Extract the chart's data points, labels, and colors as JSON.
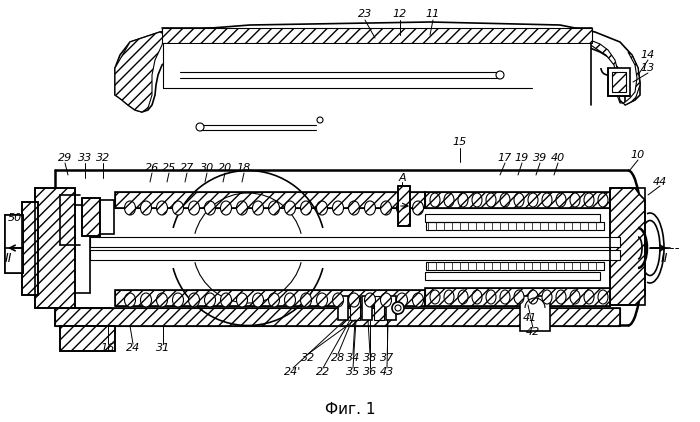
{
  "caption": "Фиг. 1",
  "bg_color": "#ffffff",
  "fig_width": 7.0,
  "fig_height": 4.22,
  "dpi": 100,
  "annotations_top": [
    [
      365,
      14,
      "23"
    ],
    [
      400,
      14,
      "12"
    ],
    [
      433,
      14,
      "11"
    ],
    [
      648,
      55,
      "14"
    ],
    [
      648,
      68,
      "13"
    ],
    [
      638,
      155,
      "10"
    ],
    [
      460,
      142,
      "15"
    ],
    [
      505,
      158,
      "17"
    ],
    [
      522,
      158,
      "19"
    ],
    [
      540,
      158,
      "39"
    ],
    [
      558,
      158,
      "40"
    ],
    [
      660,
      182,
      "44"
    ],
    [
      15,
      218,
      "50"
    ],
    [
      65,
      158,
      "29"
    ],
    [
      85,
      158,
      "33"
    ],
    [
      103,
      158,
      "32"
    ],
    [
      152,
      168,
      "26"
    ],
    [
      169,
      168,
      "25"
    ],
    [
      187,
      168,
      "27"
    ],
    [
      207,
      168,
      "30"
    ],
    [
      225,
      168,
      "20"
    ],
    [
      244,
      168,
      "18"
    ],
    [
      402,
      178,
      "A"
    ]
  ],
  "annotations_bot": [
    [
      108,
      348,
      "16"
    ],
    [
      133,
      348,
      "24"
    ],
    [
      163,
      348,
      "31"
    ],
    [
      308,
      358,
      "32"
    ],
    [
      293,
      372,
      "24'"
    ],
    [
      323,
      372,
      "22"
    ],
    [
      338,
      358,
      "28"
    ],
    [
      353,
      358,
      "34"
    ],
    [
      353,
      372,
      "35"
    ],
    [
      370,
      358,
      "38"
    ],
    [
      370,
      372,
      "36"
    ],
    [
      387,
      358,
      "37"
    ],
    [
      387,
      372,
      "43"
    ],
    [
      530,
      318,
      "41"
    ],
    [
      533,
      332,
      "42"
    ]
  ]
}
